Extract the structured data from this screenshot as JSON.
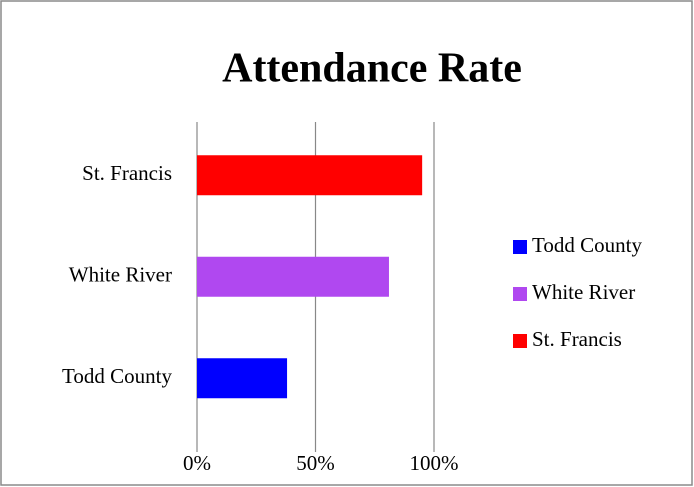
{
  "chart_data": {
    "type": "bar",
    "orientation": "horizontal",
    "title": "Attendance Rate",
    "categories": [
      "Todd County",
      "White River",
      "St. Francis"
    ],
    "values": [
      38,
      81,
      95
    ],
    "colors": [
      "#0000ff",
      "#b048f0",
      "#ff0000"
    ],
    "xlim": [
      0,
      100
    ],
    "xticks": [
      {
        "value": 0,
        "label": "0%"
      },
      {
        "value": 50,
        "label": "50%"
      },
      {
        "value": 100,
        "label": "100%"
      }
    ],
    "grid": true,
    "legend": "right"
  }
}
